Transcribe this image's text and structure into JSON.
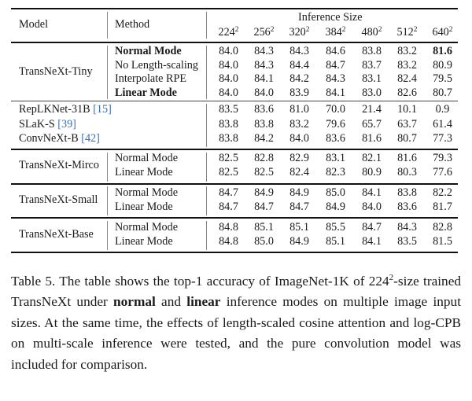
{
  "table": {
    "headers": {
      "model": "Model",
      "method": "Method",
      "group": "Inference Size",
      "sizes": [
        {
          "base": "224",
          "exp": "2"
        },
        {
          "base": "256",
          "exp": "2"
        },
        {
          "base": "320",
          "exp": "2"
        },
        {
          "base": "384",
          "exp": "2"
        },
        {
          "base": "480",
          "exp": "2"
        },
        {
          "base": "512",
          "exp": "2"
        },
        {
          "base": "640",
          "exp": "2"
        }
      ]
    },
    "groups": [
      {
        "model": "TransNeXt-Tiny",
        "rows": [
          {
            "method": "Normal Mode",
            "bold": true,
            "values": [
              "84.0",
              "84.3",
              "84.3",
              "84.6",
              "83.8",
              "83.2",
              "81.6"
            ],
            "bold_last": true
          },
          {
            "method": "No Length-scaling",
            "bold": false,
            "values": [
              "84.0",
              "84.3",
              "84.4",
              "84.7",
              "83.7",
              "83.2",
              "80.9"
            ]
          },
          {
            "method": "Interpolate RPE",
            "bold": false,
            "values": [
              "84.0",
              "84.1",
              "84.2",
              "84.3",
              "83.1",
              "82.4",
              "79.5"
            ]
          },
          {
            "method": "Linear Mode",
            "bold": true,
            "values": [
              "84.0",
              "84.0",
              "83.9",
              "84.1",
              "83.0",
              "82.6",
              "80.7"
            ]
          }
        ]
      },
      {
        "baselines": [
          {
            "model": "RepLKNet-31B",
            "ref": "[15]",
            "values": [
              "83.5",
              "83.6",
              "81.0",
              "70.0",
              "21.4",
              "10.1",
              "0.9"
            ]
          },
          {
            "model": "SLaK-S",
            "ref": "[39]",
            "values": [
              "83.8",
              "83.8",
              "83.2",
              "79.6",
              "65.7",
              "63.7",
              "61.4"
            ]
          },
          {
            "model": "ConvNeXt-B",
            "ref": "[42]",
            "values": [
              "83.8",
              "84.2",
              "84.0",
              "83.6",
              "81.6",
              "80.7",
              "77.3"
            ]
          }
        ]
      },
      {
        "model": "TransNeXt-Mirco",
        "rows": [
          {
            "method": "Normal Mode",
            "values": [
              "82.5",
              "82.8",
              "82.9",
              "83.1",
              "82.1",
              "81.6",
              "79.3"
            ]
          },
          {
            "method": "Linear Mode",
            "values": [
              "82.5",
              "82.5",
              "82.4",
              "82.3",
              "80.9",
              "80.3",
              "77.6"
            ]
          }
        ]
      },
      {
        "model": "TransNeXt-Small",
        "rows": [
          {
            "method": "Normal Mode",
            "values": [
              "84.7",
              "84.9",
              "84.9",
              "85.0",
              "84.1",
              "83.8",
              "82.2"
            ]
          },
          {
            "method": "Linear Mode",
            "values": [
              "84.7",
              "84.7",
              "84.7",
              "84.9",
              "84.0",
              "83.6",
              "81.7"
            ]
          }
        ]
      },
      {
        "model": "TransNeXt-Base",
        "rows": [
          {
            "method": "Normal Mode",
            "values": [
              "84.8",
              "85.1",
              "85.1",
              "85.5",
              "84.7",
              "84.3",
              "82.8"
            ]
          },
          {
            "method": "Linear Mode",
            "values": [
              "84.8",
              "85.0",
              "84.9",
              "85.1",
              "84.1",
              "83.5",
              "81.5"
            ]
          }
        ]
      }
    ]
  },
  "caption": {
    "label": "Table 5.",
    "part1": " The table shows the top-1 accuracy of ImageNet-1K of ",
    "size_base": "224",
    "size_exp": "2",
    "part2": "-size trained TransNeXt under ",
    "bold1": "normal",
    "part3": " and ",
    "bold2": "linear",
    "part4": " inference modes on multiple image input sizes. At the same time, the effects of length-scaled cosine attention and log-CPB on multi-scale inference were tested, and the pure convolution model was included for comparison."
  },
  "chart_data": {
    "type": "table",
    "title": "Table 5. Top-1 accuracy of ImageNet-1K of 224^2-size trained TransNeXt under normal and linear inference modes on multiple image input sizes",
    "columns": [
      "Model",
      "Method",
      "224^2",
      "256^2",
      "320^2",
      "384^2",
      "480^2",
      "512^2",
      "640^2"
    ],
    "column_group": "Inference Size",
    "rows": [
      [
        "TransNeXt-Tiny",
        "Normal Mode",
        84.0,
        84.3,
        84.3,
        84.6,
        83.8,
        83.2,
        81.6
      ],
      [
        "TransNeXt-Tiny",
        "No Length-scaling",
        84.0,
        84.3,
        84.4,
        84.7,
        83.7,
        83.2,
        80.9
      ],
      [
        "TransNeXt-Tiny",
        "Interpolate RPE",
        84.0,
        84.1,
        84.2,
        84.3,
        83.1,
        82.4,
        79.5
      ],
      [
        "TransNeXt-Tiny",
        "Linear Mode",
        84.0,
        84.0,
        83.9,
        84.1,
        83.0,
        82.6,
        80.7
      ],
      [
        "RepLKNet-31B [15]",
        "",
        83.5,
        83.6,
        81.0,
        70.0,
        21.4,
        10.1,
        0.9
      ],
      [
        "SLaK-S [39]",
        "",
        83.8,
        83.8,
        83.2,
        79.6,
        65.7,
        63.7,
        61.4
      ],
      [
        "ConvNeXt-B [42]",
        "",
        83.8,
        84.2,
        84.0,
        83.6,
        81.6,
        80.7,
        77.3
      ],
      [
        "TransNeXt-Mirco",
        "Normal Mode",
        82.5,
        82.8,
        82.9,
        83.1,
        82.1,
        81.6,
        79.3
      ],
      [
        "TransNeXt-Mirco",
        "Linear Mode",
        82.5,
        82.5,
        82.4,
        82.3,
        80.9,
        80.3,
        77.6
      ],
      [
        "TransNeXt-Small",
        "Normal Mode",
        84.7,
        84.9,
        84.9,
        85.0,
        84.1,
        83.8,
        82.2
      ],
      [
        "TransNeXt-Small",
        "Linear Mode",
        84.7,
        84.7,
        84.7,
        84.9,
        84.0,
        83.6,
        81.7
      ],
      [
        "TransNeXt-Base",
        "Normal Mode",
        84.8,
        85.1,
        85.1,
        85.5,
        84.7,
        84.3,
        82.8
      ],
      [
        "TransNeXt-Base",
        "Linear Mode",
        84.8,
        85.0,
        84.9,
        85.1,
        84.1,
        83.5,
        81.5
      ]
    ]
  }
}
